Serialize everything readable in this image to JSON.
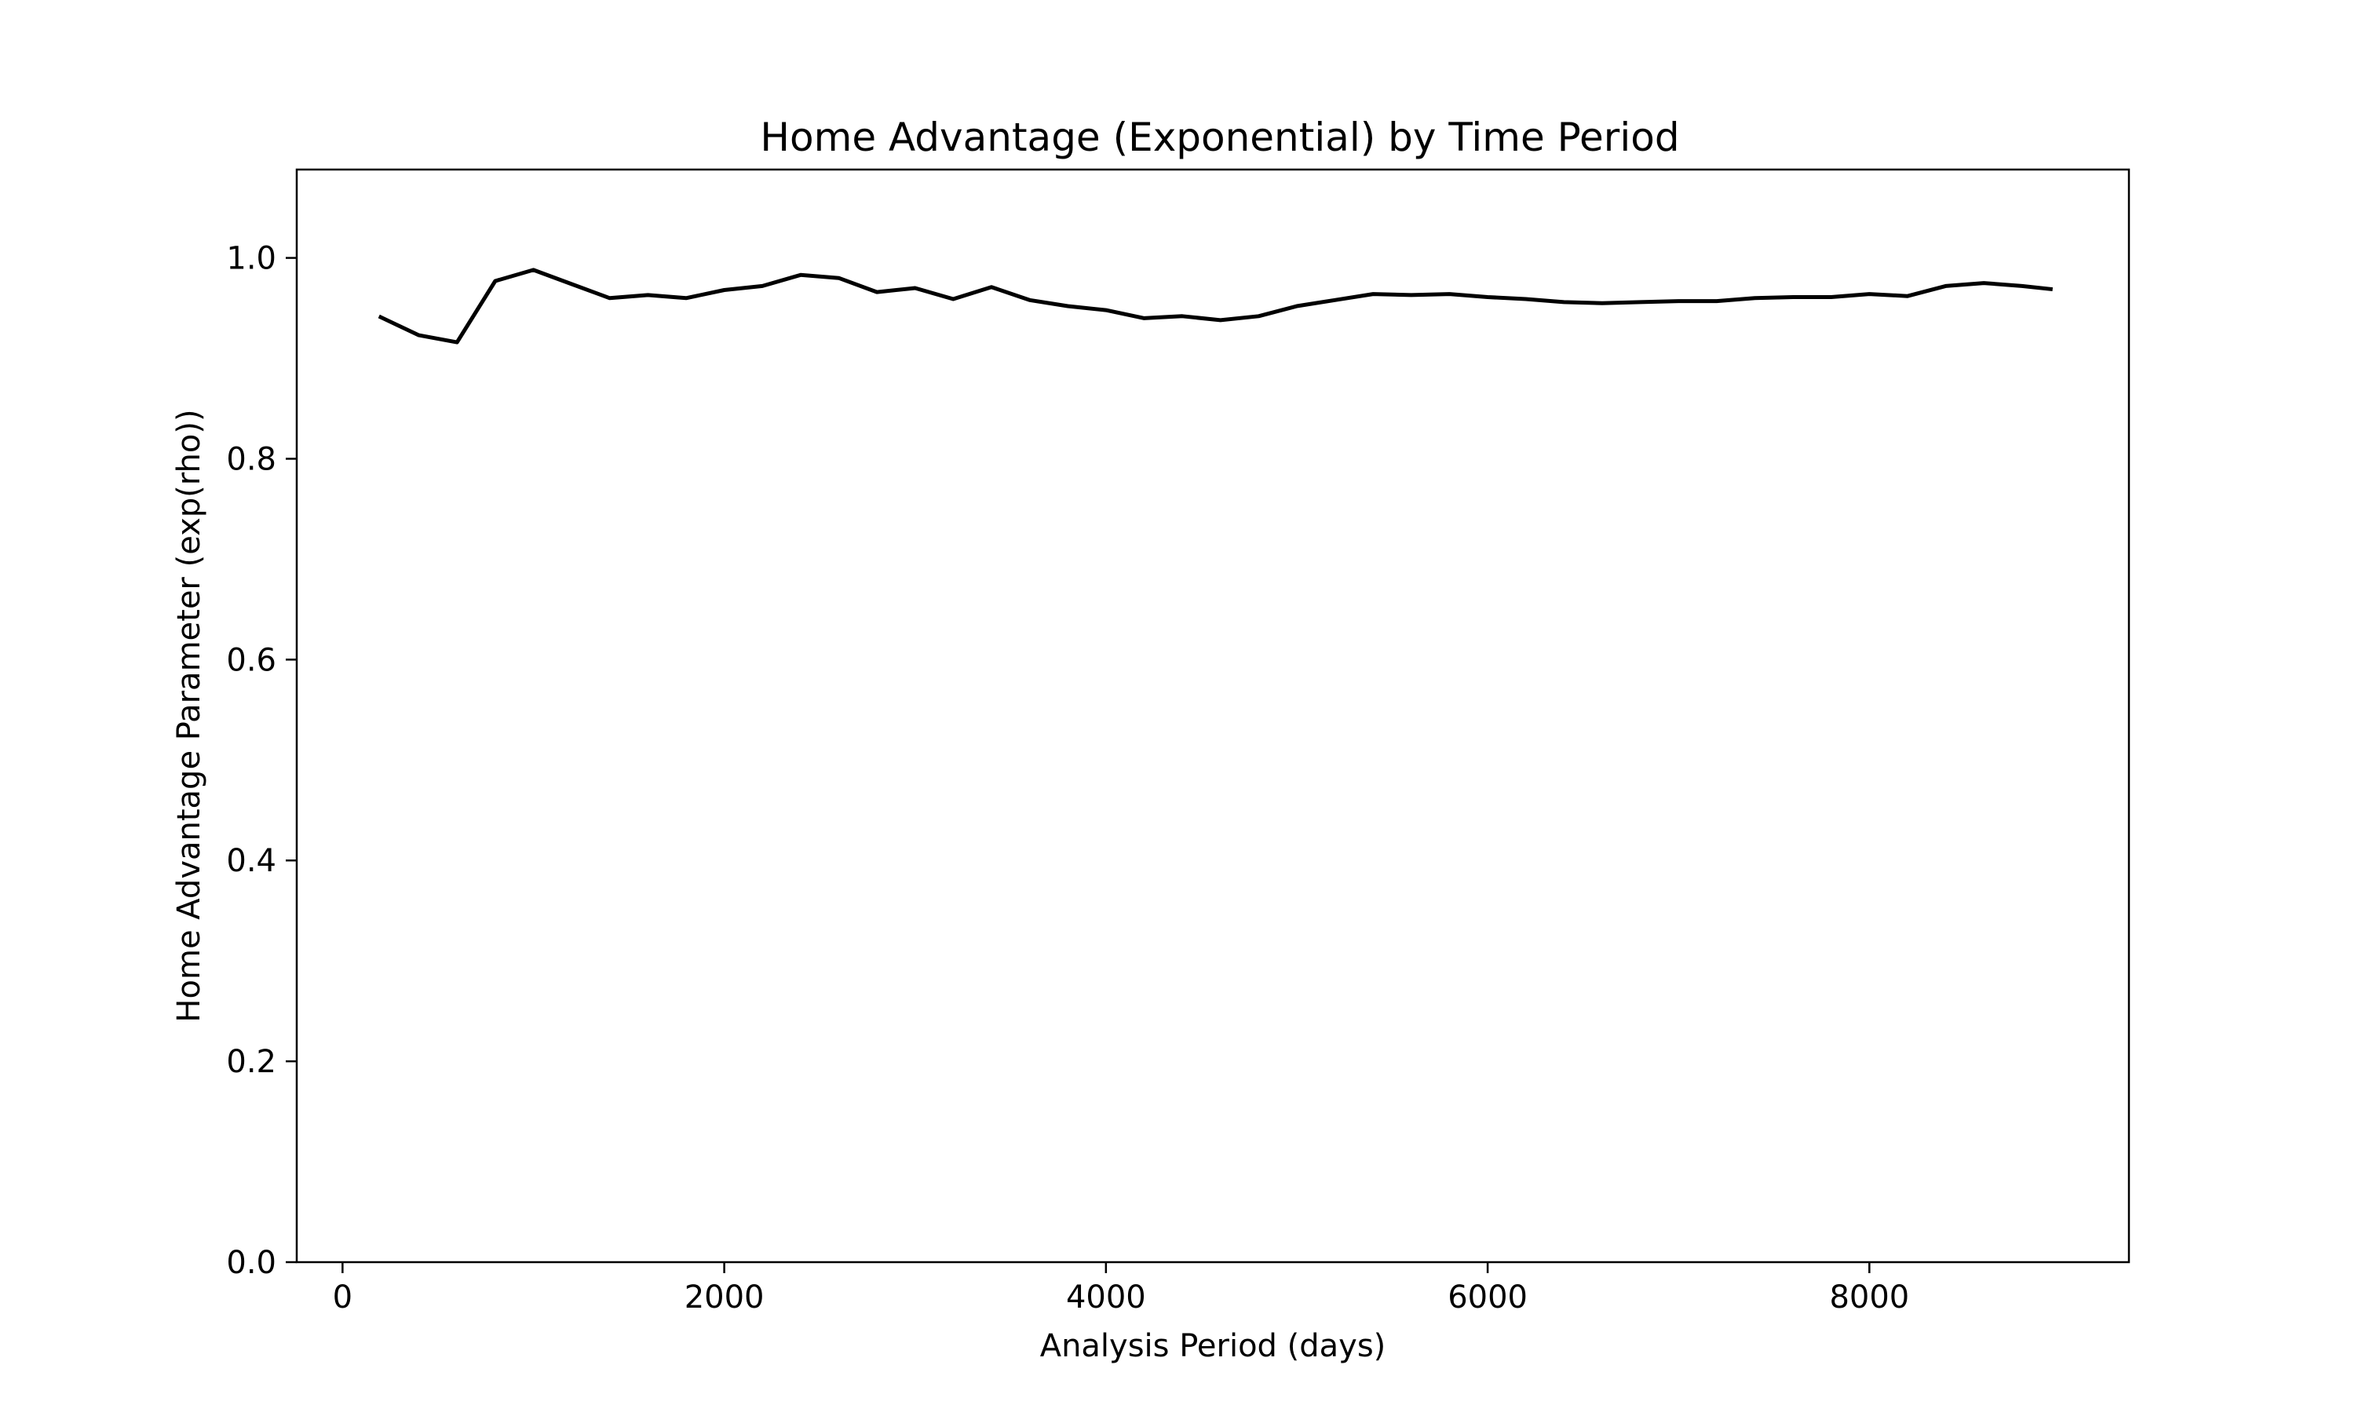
{
  "chart_data": {
    "type": "line",
    "title": "Home Advantage (Exponential) by Time Period",
    "xlabel": "Analysis Period (days)",
    "ylabel": "Home Advantage Parameter (exp(rho))",
    "xlim": [
      -240,
      9360
    ],
    "ylim": [
      0.0,
      1.088
    ],
    "x_ticks": [
      0,
      2000,
      4000,
      6000,
      8000
    ],
    "x_tick_labels": [
      "0",
      "2000",
      "4000",
      "6000",
      "8000"
    ],
    "y_ticks": [
      0.0,
      0.2,
      0.4,
      0.6,
      0.8,
      1.0
    ],
    "y_tick_labels": [
      "0.0",
      "0.2",
      "0.4",
      "0.6",
      "0.8",
      "1.0"
    ],
    "grid": false,
    "line_color": "#000000",
    "series": [
      {
        "x": [
          200,
          400,
          600,
          800,
          1000,
          1200,
          1400,
          1600,
          1800,
          2000,
          2200,
          2400,
          2600,
          2800,
          3000,
          3200,
          3400,
          3600,
          3800,
          4000,
          4200,
          4400,
          4600,
          4800,
          5000,
          5200,
          5400,
          5600,
          5800,
          6000,
          6200,
          6400,
          6600,
          6800,
          7000,
          7200,
          7400,
          7600,
          7800,
          8000,
          8200,
          8400,
          8600,
          8800,
          8950
        ],
        "values": [
          0.941,
          0.923,
          0.916,
          0.977,
          0.988,
          0.974,
          0.96,
          0.963,
          0.96,
          0.968,
          0.972,
          0.983,
          0.98,
          0.966,
          0.97,
          0.959,
          0.971,
          0.958,
          0.952,
          0.948,
          0.94,
          0.942,
          0.938,
          0.942,
          0.952,
          0.958,
          0.964,
          0.963,
          0.964,
          0.961,
          0.959,
          0.956,
          0.955,
          0.956,
          0.957,
          0.957,
          0.96,
          0.961,
          0.961,
          0.964,
          0.962,
          0.972,
          0.975,
          0.972,
          0.969
        ]
      }
    ]
  }
}
